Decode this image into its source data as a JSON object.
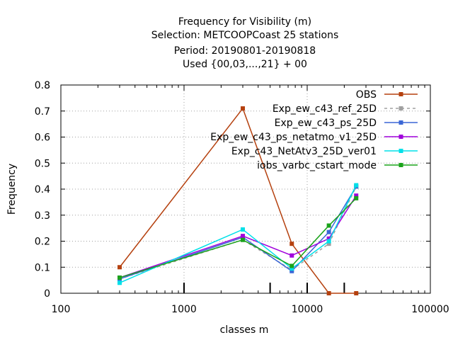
{
  "chart_data": {
    "type": "line",
    "title_lines": [
      "Frequency  for Visibility (m)",
      "Selection: METCOOPCoast     25 stations",
      "Period: 20190801-20190818",
      "Used {00,03,...,21} + 00"
    ],
    "xlabel": "classes m",
    "ylabel": "Frequency",
    "x_scale": "log",
    "xlim": [
      100,
      100000
    ],
    "ylim": [
      0,
      0.8
    ],
    "x_ticks": [
      {
        "value": 100,
        "label": "100"
      },
      {
        "value": 1000,
        "label": "1000"
      },
      {
        "value": 10000,
        "label": "10000"
      },
      {
        "value": 100000,
        "label": "100000"
      }
    ],
    "y_ticks": [
      {
        "value": 0,
        "label": "0"
      },
      {
        "value": 0.1,
        "label": "0.1"
      },
      {
        "value": 0.2,
        "label": "0.2"
      },
      {
        "value": 0.3,
        "label": "0.3"
      },
      {
        "value": 0.4,
        "label": "0.4"
      },
      {
        "value": 0.5,
        "label": "0.5"
      },
      {
        "value": 0.6,
        "label": "0.6"
      },
      {
        "value": 0.7,
        "label": "0.7"
      },
      {
        "value": 0.8,
        "label": "0.8"
      }
    ],
    "grid": true,
    "legend_position": "top-right",
    "class_markers": [
      1000,
      5000,
      10000,
      20000
    ],
    "x": [
      300,
      3000,
      7500,
      15000,
      25000
    ],
    "series": [
      {
        "name": "OBS",
        "color": "#b5410f",
        "dashed": false,
        "values": [
          0.1,
          0.71,
          0.19,
          0.0,
          0.0
        ]
      },
      {
        "name": "Exp_ew_c43_ref_25D",
        "color": "#a0a0a0",
        "dashed": true,
        "values": [
          0.055,
          0.205,
          0.09,
          0.19,
          0.41
        ]
      },
      {
        "name": "Exp_ew_c43_ps_25D",
        "color": "#3b67d6",
        "dashed": false,
        "values": [
          0.055,
          0.215,
          0.085,
          0.235,
          0.41
        ]
      },
      {
        "name": "Exp_ew_c43_ps_netatmo_v1_25D",
        "color": "#a000dc",
        "dashed": false,
        "values": [
          0.06,
          0.22,
          0.145,
          0.21,
          0.375
        ]
      },
      {
        "name": "Exp_c43_NetAtv3_25D_ver01",
        "color": "#00e0e8",
        "dashed": false,
        "values": [
          0.04,
          0.245,
          0.095,
          0.2,
          0.415
        ]
      },
      {
        "name": "iobs_varbc_cstart_mode",
        "color": "#1aa31a",
        "dashed": false,
        "values": [
          0.06,
          0.205,
          0.105,
          0.26,
          0.365
        ]
      }
    ]
  }
}
